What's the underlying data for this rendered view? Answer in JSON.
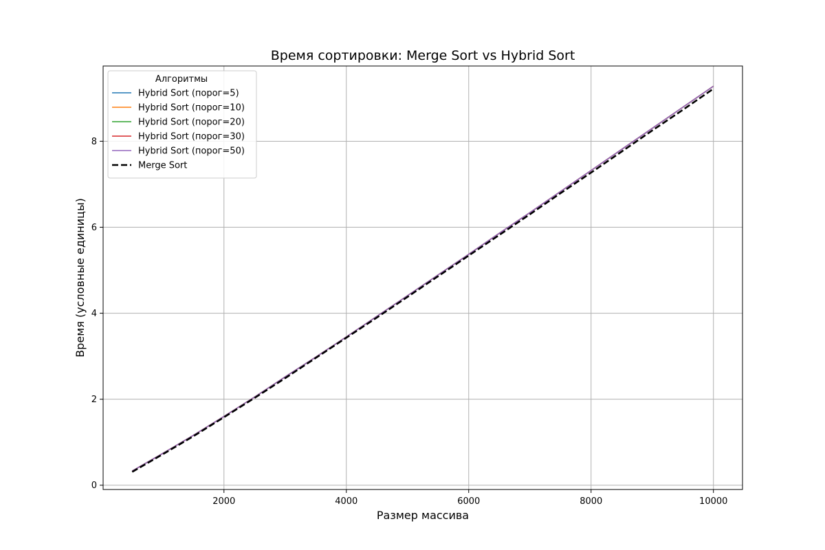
{
  "chart_data": {
    "type": "line",
    "title": "Время сортировки: Merge Sort vs Hybrid Sort",
    "xlabel": "Размер массива",
    "ylabel": "Время (условные единицы)",
    "xlim": [
      25,
      10475
    ],
    "ylim": [
      -0.1,
      9.75
    ],
    "xticks": [
      2000,
      4000,
      6000,
      8000,
      10000
    ],
    "yticks": [
      0,
      2,
      4,
      6,
      8
    ],
    "grid": true,
    "legend": {
      "title": "Алгоритмы",
      "placement": "top-left"
    },
    "x": [
      500,
      1000,
      1500,
      2000,
      2500,
      3000,
      3500,
      4000,
      4500,
      5000,
      5500,
      6000,
      6500,
      7000,
      7500,
      8000,
      8500,
      9000,
      9500,
      10000
    ],
    "series": [
      {
        "name": "Hybrid Sort (порог=5)",
        "color": "#1f77b4",
        "style": "solid",
        "values": [
          0.33,
          0.74,
          1.16,
          1.6,
          2.05,
          2.52,
          2.98,
          3.45,
          3.93,
          4.41,
          4.89,
          5.37,
          5.86,
          6.34,
          6.83,
          7.32,
          7.81,
          8.3,
          8.79,
          9.28
        ]
      },
      {
        "name": "Hybrid Sort (порог=10)",
        "color": "#ff7f0e",
        "style": "solid",
        "values": [
          0.33,
          0.74,
          1.16,
          1.6,
          2.05,
          2.52,
          2.98,
          3.45,
          3.93,
          4.41,
          4.89,
          5.37,
          5.86,
          6.34,
          6.83,
          7.32,
          7.81,
          8.3,
          8.79,
          9.28
        ]
      },
      {
        "name": "Hybrid Sort (порог=20)",
        "color": "#2ca02c",
        "style": "solid",
        "values": [
          0.33,
          0.74,
          1.16,
          1.6,
          2.05,
          2.52,
          2.98,
          3.45,
          3.93,
          4.41,
          4.89,
          5.37,
          5.86,
          6.34,
          6.83,
          7.32,
          7.81,
          8.3,
          8.79,
          9.28
        ]
      },
      {
        "name": "Hybrid Sort (порог=30)",
        "color": "#d62728",
        "style": "solid",
        "values": [
          0.33,
          0.74,
          1.16,
          1.6,
          2.05,
          2.52,
          2.98,
          3.45,
          3.93,
          4.41,
          4.89,
          5.37,
          5.86,
          6.34,
          6.83,
          7.32,
          7.81,
          8.3,
          8.79,
          9.28
        ]
      },
      {
        "name": "Hybrid Sort (порог=50)",
        "color": "#9467bd",
        "style": "solid",
        "values": [
          0.33,
          0.74,
          1.16,
          1.6,
          2.05,
          2.52,
          2.98,
          3.45,
          3.93,
          4.41,
          4.89,
          5.37,
          5.86,
          6.34,
          6.83,
          7.32,
          7.81,
          8.3,
          8.79,
          9.28
        ]
      },
      {
        "name": "Merge Sort",
        "color": "#000000",
        "style": "dashed",
        "values": [
          0.31,
          0.72,
          1.14,
          1.58,
          2.03,
          2.49,
          2.96,
          3.43,
          3.9,
          4.38,
          4.86,
          5.34,
          5.82,
          6.3,
          6.79,
          7.27,
          7.76,
          8.25,
          8.73,
          9.22
        ]
      }
    ]
  }
}
